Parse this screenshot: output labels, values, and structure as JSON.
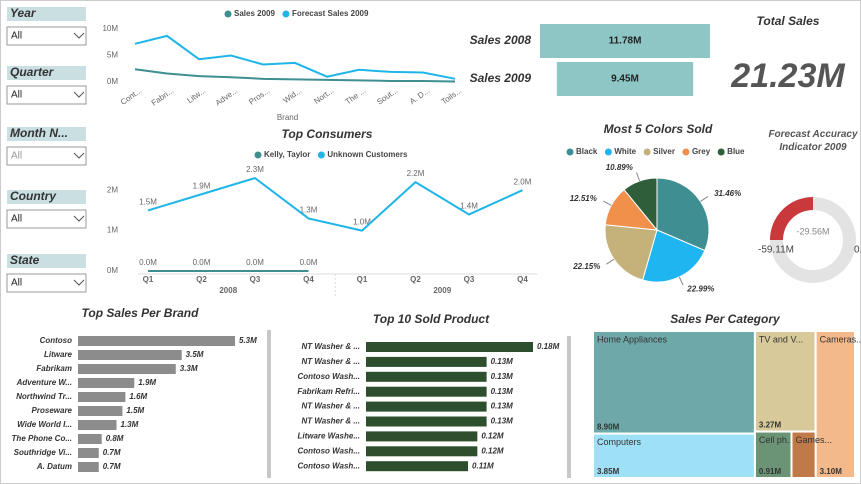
{
  "slicers": [
    {
      "label": "Year",
      "value": "All"
    },
    {
      "label": "Quarter",
      "value": "All"
    },
    {
      "label": "Month N...",
      "value": "All"
    },
    {
      "label": "Country",
      "value": "All"
    },
    {
      "label": "State",
      "value": "All"
    }
  ],
  "cards": [
    {
      "title": "Total Sales",
      "value": "21.23M"
    }
  ],
  "chart_data": [
    {
      "type": "line",
      "categories": [
        "Cont...",
        "Fabri...",
        "Litw...",
        "Adve...",
        "Pros...",
        "Wid...",
        "Nort...",
        "The ...",
        "Sout...",
        "A. D...",
        "Toils..."
      ],
      "x_label": "Brand",
      "ylim": [
        0,
        11
      ],
      "yticks": [
        {
          "value": 0,
          "label": "0M"
        },
        {
          "value": 5,
          "label": "5M"
        },
        {
          "value": 10,
          "label": "10M"
        }
      ],
      "series": [
        {
          "name": "Sales 2009",
          "color": "#3f8e92",
          "values": [
            2.4,
            1.6,
            1.1,
            0.9,
            0.6,
            0.5,
            0.4,
            0.3,
            0.2,
            0.2,
            0.1
          ]
        },
        {
          "name": "Forecast Sales 2009",
          "color": "#1fb5e8",
          "values": [
            7.2,
            8.7,
            4.3,
            5.0,
            3.3,
            3.6,
            1.0,
            2.3,
            1.9,
            1.8,
            0.6
          ]
        }
      ]
    },
    {
      "type": "funnel",
      "categories": [
        "Sales 2008",
        "Sales 2009"
      ],
      "values": [
        11.78,
        9.45
      ],
      "value_labels": [
        "11.78M",
        "9.45M"
      ],
      "color": "#8ec6c6"
    },
    {
      "type": "line",
      "title": "Top Consumers",
      "categories": [
        "Q1",
        "Q2",
        "Q3",
        "Q4",
        "Q1",
        "Q2",
        "Q3",
        "Q4"
      ],
      "groups": [
        "2008",
        "2009"
      ],
      "ylim": [
        0,
        2.5
      ],
      "yticks": [
        {
          "value": 0,
          "label": "0M"
        },
        {
          "value": 1,
          "label": "1M"
        },
        {
          "value": 2,
          "label": "2M"
        }
      ],
      "series": [
        {
          "name": "Kelly, Taylor",
          "color": "#3f8e92",
          "values": [
            0,
            0,
            0,
            0,
            null,
            null,
            null,
            null
          ],
          "value_labels": [
            "0.0M",
            "0.0M",
            "0.0M",
            "0.0M",
            null,
            null,
            null,
            null
          ]
        },
        {
          "name": "Unknown Customers",
          "color": "#1fb5e8",
          "values": [
            1.5,
            1.9,
            2.3,
            1.3,
            1.0,
            2.2,
            1.4,
            2.0
          ],
          "value_labels": [
            "1.5M",
            "1.9M",
            "2.3M",
            "1.3M",
            "1.0M",
            "2.2M",
            "1.4M",
            "2.0M"
          ]
        }
      ]
    },
    {
      "type": "pie",
      "title": "Most 5 Colors Sold",
      "categories": [
        "Black",
        "White",
        "Silver",
        "Grey",
        "Blue"
      ],
      "values": [
        31.46,
        22.99,
        22.15,
        12.51,
        10.89
      ],
      "value_labels": [
        "31.46%",
        "22.99%",
        "22.15%",
        "12.51%",
        "10.89%"
      ],
      "colors": [
        "#3f8e92",
        "#1fb5f0",
        "#c4b27a",
        "#f0904a",
        "#2e5e3a"
      ]
    },
    {
      "type": "gauge",
      "title": "Forecast Accuracy Indicator 2009",
      "value": -29.56,
      "min": -59.11,
      "max": 0,
      "value_label": "-29.56M",
      "min_label": "-59.11M",
      "max_label": "0.00",
      "color": "#c9383a"
    },
    {
      "type": "bar",
      "orientation": "horizontal",
      "title": "Top Sales Per Brand",
      "categories": [
        "Contoso",
        "Litware",
        "Fabrikam",
        "Adventure W...",
        "Northwind Tr...",
        "Proseware",
        "Wide World I...",
        "The Phone Co...",
        "Southridge Vi...",
        "A. Datum"
      ],
      "values": [
        5.3,
        3.5,
        3.3,
        1.9,
        1.6,
        1.5,
        1.3,
        0.8,
        0.7,
        0.7
      ],
      "value_labels": [
        "5.3M",
        "3.5M",
        "3.3M",
        "1.9M",
        "1.6M",
        "1.5M",
        "1.3M",
        "0.8M",
        "0.7M",
        "0.7M"
      ],
      "color": "#8c8c8c"
    },
    {
      "type": "bar",
      "orientation": "horizontal",
      "title": "Top 10 Sold Product",
      "categories": [
        "NT Washer & ...",
        "NT Washer & ...",
        "Contoso Wash...",
        "Fabrikam Refri...",
        "NT Washer & ...",
        "NT Washer & ...",
        "Litware Washe...",
        "Contoso Wash...",
        "Contoso Wash..."
      ],
      "values": [
        0.18,
        0.13,
        0.13,
        0.13,
        0.13,
        0.13,
        0.12,
        0.12,
        0.11
      ],
      "value_labels": [
        "0.18M",
        "0.13M",
        "0.13M",
        "0.13M",
        "0.13M",
        "0.13M",
        "0.12M",
        "0.12M",
        "0.11M"
      ],
      "color": "#2d4f2d"
    },
    {
      "type": "treemap",
      "title": "Sales Per Category",
      "categories": [
        "Home Appliances",
        "Computers",
        "TV and V...",
        "Cameras...",
        "Cell ph...",
        "Games..."
      ],
      "values": [
        8.9,
        3.85,
        3.27,
        3.1,
        0.91,
        0.6
      ],
      "value_labels": [
        "8.90M",
        "3.85M",
        "3.27M",
        "3.10M",
        "0.91M",
        null
      ],
      "colors": [
        "#6fa8a8",
        "#9ee0f5",
        "#d8c99a",
        "#f4b98a",
        "#6b9476",
        "#c07a4a"
      ]
    }
  ]
}
